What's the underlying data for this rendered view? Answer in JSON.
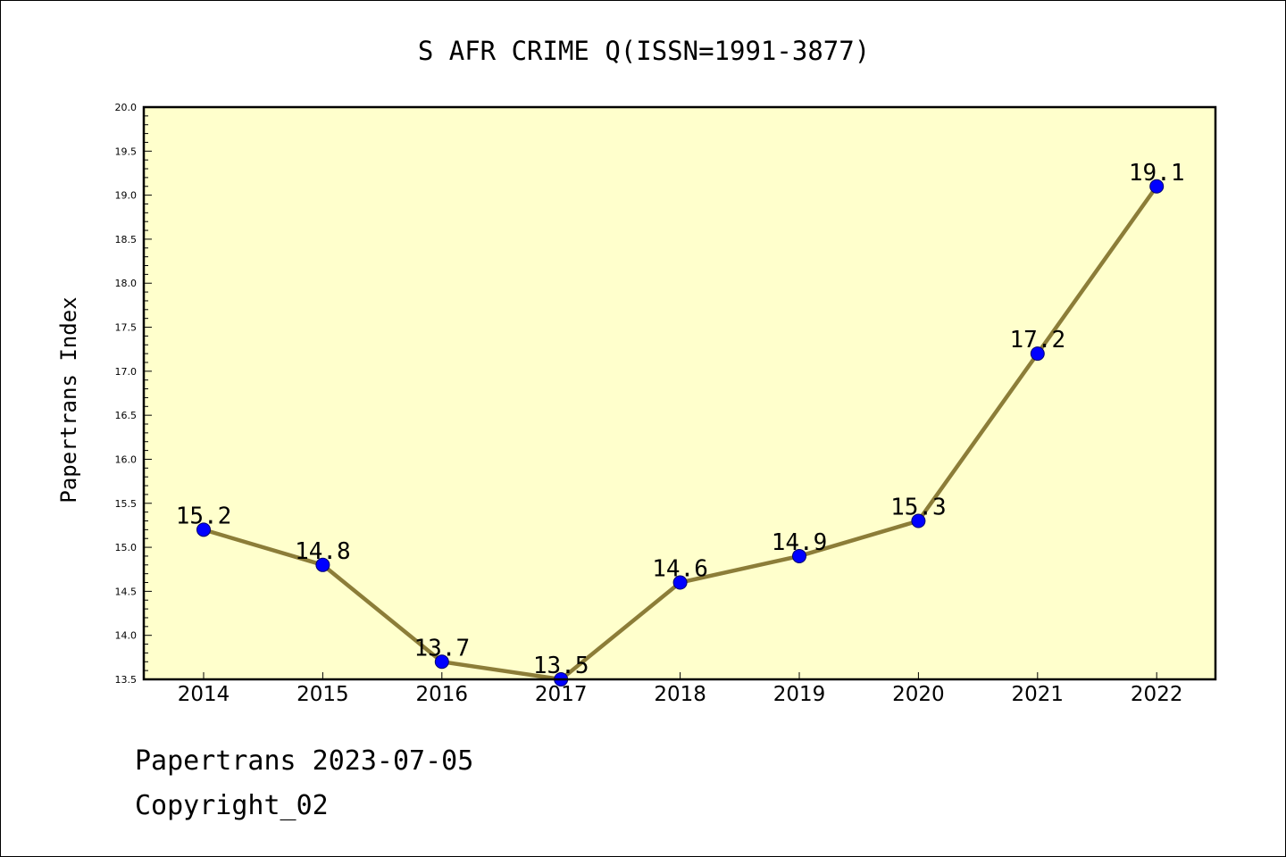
{
  "colors": {
    "plot_background": "#ffffcc",
    "line": "#8c7d38",
    "marker_fill": "#0000ff",
    "marker_edge": "#00006e",
    "axes": "#000000"
  },
  "footer": {
    "date_line": "Papertrans 2023-07-05",
    "copyright_line": "Copyright_02"
  },
  "chart_data": {
    "type": "line",
    "title": "S AFR CRIME Q(ISSN=1991-3877)",
    "xlabel": "",
    "ylabel": "Papertrans Index",
    "categories": [
      "2014",
      "2015",
      "2016",
      "2017",
      "2018",
      "2019",
      "2020",
      "2021",
      "2022"
    ],
    "values": [
      15.2,
      14.8,
      13.7,
      13.5,
      14.6,
      14.9,
      15.3,
      17.2,
      19.1
    ],
    "data_labels": [
      "15.2",
      "14.8",
      "13.7",
      "13.5",
      "14.6",
      "14.9",
      "15.3",
      "17.2",
      "19.1"
    ],
    "ylim": [
      13.5,
      20.0
    ],
    "yticks": [
      "13.5",
      "14.0",
      "14.5",
      "15.0",
      "15.5",
      "16.0",
      "16.5",
      "17.0",
      "17.5",
      "18.0",
      "18.5",
      "19.0",
      "19.5",
      "20.0"
    ],
    "grid": false,
    "legend": "none",
    "markers": "circle"
  }
}
